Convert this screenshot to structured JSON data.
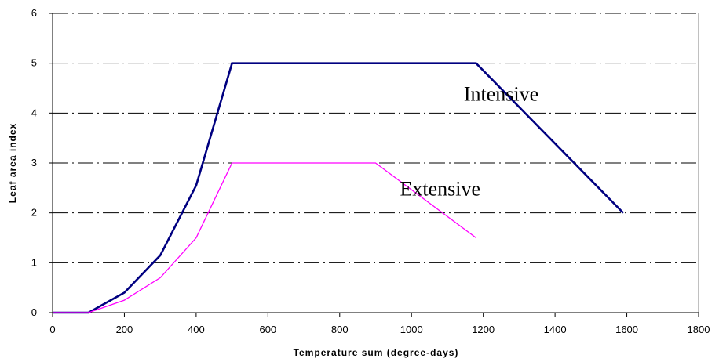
{
  "chart_data": {
    "type": "line",
    "title": "",
    "xlabel": "Temperature sum (degree-days)",
    "ylabel": "Leaf area index",
    "xlim": [
      0,
      1800
    ],
    "ylim": [
      0,
      6
    ],
    "xticks": [
      0,
      200,
      400,
      600,
      800,
      1000,
      1200,
      1400,
      1600,
      1800
    ],
    "yticks": [
      0,
      1,
      2,
      3,
      4,
      5,
      6
    ],
    "grid": "horizontal dash-dot",
    "legend": "none",
    "series": [
      {
        "name": "Intensive",
        "color": "#000080",
        "points": [
          [
            0,
            0
          ],
          [
            100,
            0
          ],
          [
            200,
            0.4
          ],
          [
            300,
            1.15
          ],
          [
            400,
            2.55
          ],
          [
            500,
            5
          ],
          [
            1180,
            5
          ],
          [
            1590,
            2
          ]
        ]
      },
      {
        "name": "Extensive",
        "color": "#ff00ff",
        "points": [
          [
            0,
            0
          ],
          [
            100,
            0
          ],
          [
            200,
            0.25
          ],
          [
            300,
            0.7
          ],
          [
            400,
            1.5
          ],
          [
            500,
            3
          ],
          [
            900,
            3
          ],
          [
            1180,
            1.5
          ]
        ]
      }
    ]
  }
}
